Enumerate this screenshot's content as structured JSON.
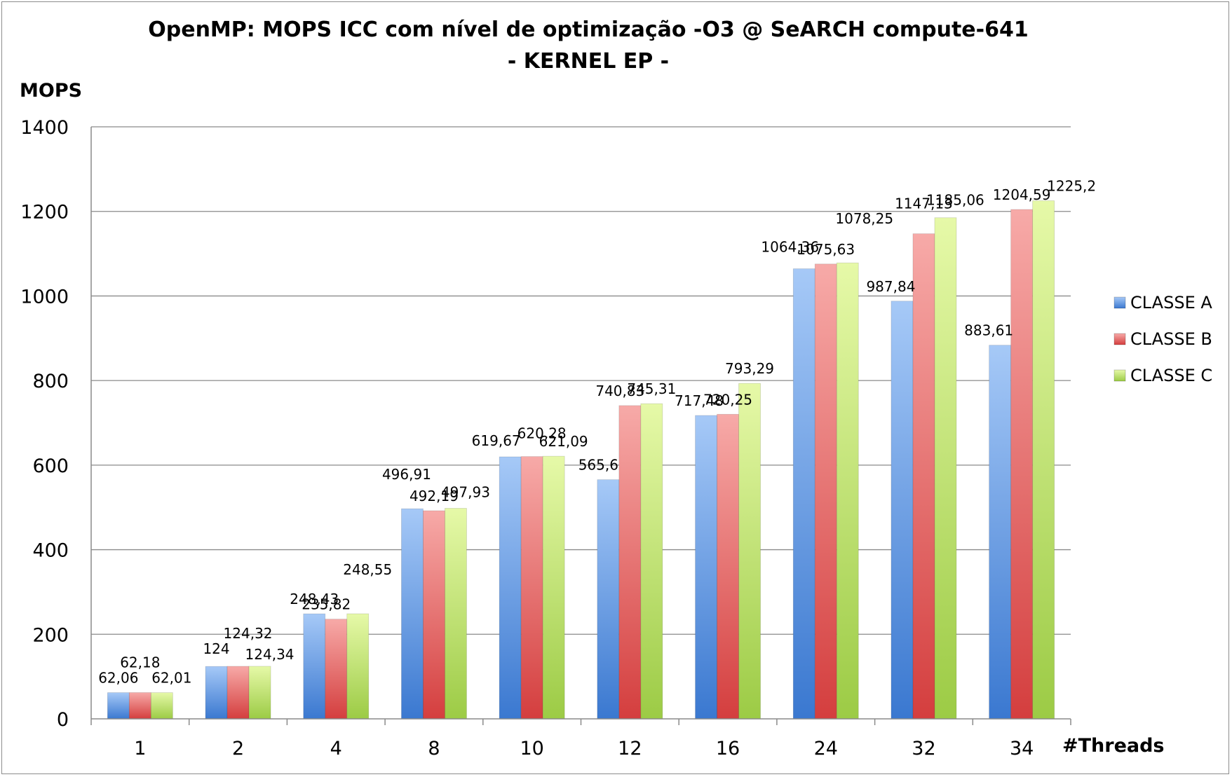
{
  "chart_data": {
    "type": "bar",
    "title": "OpenMP: MOPS ICC com nível de optimização -O3 @ SeARCH compute-641",
    "subtitle": "- KERNEL EP -",
    "xlabel": "#Threads",
    "ylabel": "MOPS",
    "ylim": [
      0,
      1400
    ],
    "yticks": [
      0,
      200,
      400,
      600,
      800,
      1000,
      1200,
      1400
    ],
    "grid": true,
    "legend": "right",
    "categories": [
      "1",
      "2",
      "4",
      "8",
      "10",
      "12",
      "16",
      "24",
      "32",
      "34"
    ],
    "series": [
      {
        "name": "CLASSE A",
        "color": "#4a7fd0",
        "values": [
          62.06,
          124,
          248.43,
          496.91,
          619.67,
          565.6,
          717.48,
          1064.36,
          987.84,
          883.61
        ],
        "labels": [
          "62,06",
          "124",
          "248,43",
          "496,91",
          "619,67",
          "565,6",
          "717,48",
          "1064,36",
          "987,84",
          "883,61"
        ]
      },
      {
        "name": "CLASSE B",
        "color": "#e05a5a",
        "values": [
          62.18,
          124.32,
          235.82,
          492.19,
          620.28,
          740.83,
          720.25,
          1075.63,
          1147.13,
          1204.59
        ],
        "labels": [
          "62,18",
          "124,32",
          "235,82",
          "492,19",
          "620,28",
          "740,83",
          "720,25",
          "1075,63",
          "1147,13",
          "1204,59"
        ]
      },
      {
        "name": "CLASSE C",
        "color": "#a8d050",
        "values": [
          62.01,
          124.34,
          248.55,
          497.93,
          621.09,
          745.31,
          793.29,
          1078.25,
          1185.06,
          1225.2
        ],
        "labels": [
          "62,01",
          "124,34",
          "248,55",
          "497,93",
          "621,09",
          "745,31",
          "793,29",
          "1078,25",
          "1185,06",
          "1225,2"
        ]
      }
    ]
  }
}
